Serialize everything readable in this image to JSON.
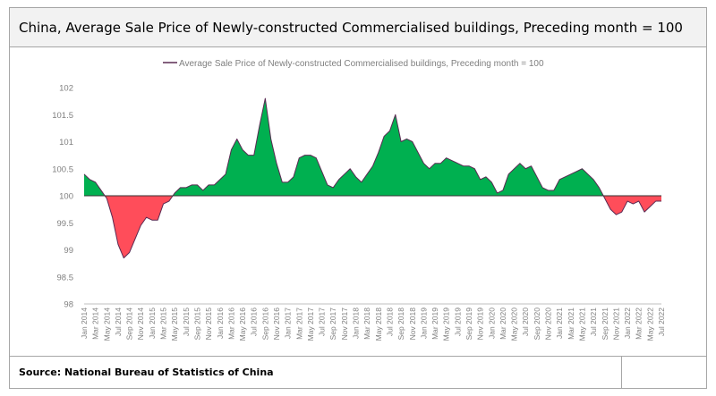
{
  "header": {
    "title": "China, Average Sale Price of Newly-constructed Commercialised buildings, Preceding month = 100"
  },
  "footer": {
    "source": "Source: National Bureau of Statistics of China"
  },
  "colors": {
    "above_fill": "#00b050",
    "below_fill": "#ff4d5a",
    "line": "#5a2a52",
    "baseline": "#333333",
    "grid": "#d9d9d9",
    "axis_text": "#7f7f7f"
  },
  "chart_data": {
    "type": "area",
    "title": "",
    "legend": {
      "position": "top",
      "label": "Average Sale Price of Newly-constructed Commercialised buildings, Preceding month = 100"
    },
    "baseline": 100,
    "ylim": [
      98,
      102
    ],
    "yticks": [
      98,
      98.5,
      99,
      99.5,
      100,
      100.5,
      101,
      101.5,
      102
    ],
    "grid": false,
    "x_start": "Jan 2014",
    "x_tick_labels": [
      "Jan 2014",
      "Mar 2014",
      "May 2014",
      "Jul 2014",
      "Sep 2014",
      "Nov 2014",
      "Jan 2015",
      "Mar 2015",
      "May 2015",
      "Jul 2015",
      "Sep 2015",
      "Nov 2015",
      "Jan 2016",
      "Mar 2016",
      "May 2016",
      "Jul 2016",
      "Sep 2016",
      "Nov 2016",
      "Jan 2017",
      "Mar 2017",
      "May 2017",
      "Jul 2017",
      "Sep 2017",
      "Nov 2017",
      "Jan 2018",
      "Mar 2018",
      "May 2018",
      "Jul 2018",
      "Sep 2018",
      "Nov 2018",
      "Jan 2019",
      "Mar 2019",
      "May 2019",
      "Jul 2019",
      "Sep 2019",
      "Nov 2019",
      "Jan 2020",
      "Mar 2020",
      "May 2020",
      "Jul 2020",
      "Sep 2020",
      "Nov 2020",
      "Jan 2021",
      "Mar 2021",
      "May 2021",
      "Jul 2021",
      "Sep 2021",
      "Nov 2021",
      "Jan 2022",
      "Mar 2022",
      "May 2022",
      "Jul 2022"
    ],
    "series": [
      {
        "name": "Average Sale Price of Newly-constructed Commercialised buildings, Preceding month = 100",
        "values": [
          100.4,
          100.3,
          100.25,
          100.1,
          99.95,
          99.6,
          99.1,
          98.85,
          98.95,
          99.2,
          99.45,
          99.6,
          99.55,
          99.55,
          99.85,
          99.9,
          100.05,
          100.15,
          100.15,
          100.2,
          100.2,
          100.1,
          100.2,
          100.2,
          100.3,
          100.4,
          100.85,
          101.05,
          100.85,
          100.75,
          100.75,
          101.3,
          101.8,
          101.05,
          100.6,
          100.25,
          100.25,
          100.35,
          100.7,
          100.75,
          100.75,
          100.7,
          100.45,
          100.2,
          100.15,
          100.3,
          100.4,
          100.5,
          100.35,
          100.25,
          100.4,
          100.55,
          100.8,
          101.1,
          101.2,
          101.5,
          101.0,
          101.05,
          101.0,
          100.8,
          100.6,
          100.5,
          100.6,
          100.6,
          100.7,
          100.65,
          100.6,
          100.55,
          100.55,
          100.5,
          100.3,
          100.35,
          100.25,
          100.05,
          100.1,
          100.4,
          100.5,
          100.6,
          100.5,
          100.55,
          100.35,
          100.15,
          100.1,
          100.1,
          100.3,
          100.35,
          100.4,
          100.45,
          100.5,
          100.4,
          100.3,
          100.15,
          99.95,
          99.75,
          99.65,
          99.7,
          99.9,
          99.85,
          99.9,
          99.7,
          99.8,
          99.9,
          99.9
        ]
      }
    ]
  }
}
